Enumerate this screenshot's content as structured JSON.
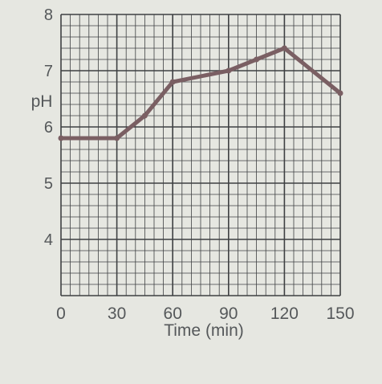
{
  "chart_data": {
    "type": "line",
    "xlabel": "Time (min)",
    "ylabel": "pH",
    "xlim": [
      0,
      150
    ],
    "ylim": [
      3,
      8
    ],
    "x_ticks": [
      "0",
      "30",
      "60",
      "90",
      "120",
      "150"
    ],
    "y_ticks": [
      "4",
      "5",
      "6",
      "7",
      "8"
    ],
    "grid": true,
    "series": [
      {
        "x": [
          0,
          30,
          45,
          60,
          90,
          105,
          120,
          150
        ],
        "y": [
          5.8,
          5.8,
          6.2,
          6.8,
          7.0,
          7.2,
          7.4,
          6.6
        ]
      }
    ],
    "colors": {
      "line": "#7a5f63",
      "grid": "#3e4042",
      "background": "#e6e7e1",
      "text": "#55585a"
    }
  }
}
